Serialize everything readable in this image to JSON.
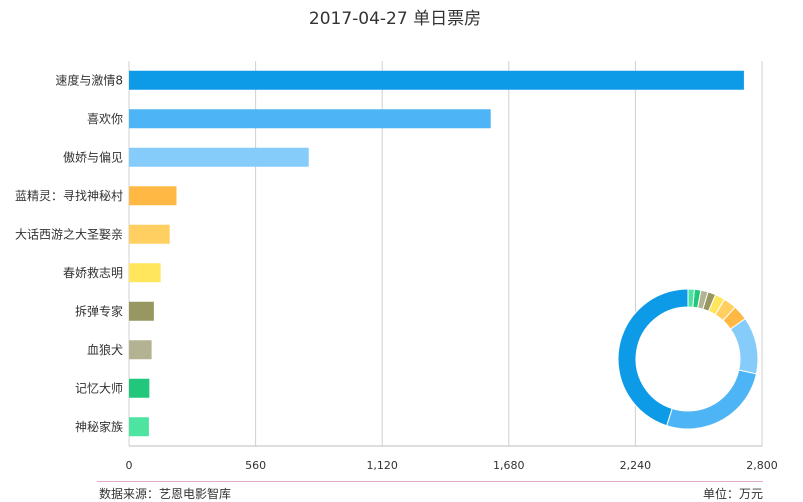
{
  "chart_data": {
    "type": "bar",
    "orientation": "horizontal",
    "title": "2017-04-27 单日票房",
    "categories": [
      "速度与激情8",
      "喜欢你",
      "傲娇与偏见",
      "蓝精灵：寻找神秘村",
      "大话西游之大圣娶亲",
      "春娇救志明",
      "拆弹专家",
      "血狼犬",
      "记忆大师",
      "神秘家族"
    ],
    "values": [
      2720,
      1600,
      795,
      210,
      180,
      140,
      110,
      100,
      90,
      88
    ],
    "colors": [
      "#0d9be8",
      "#4db5f5",
      "#86ccfb",
      "#ffb844",
      "#ffd061",
      "#ffe65c",
      "#979762",
      "#b3b393",
      "#21c77a",
      "#4de3a0"
    ],
    "xlim": [
      0,
      2800
    ],
    "xticks": [
      "0",
      "560",
      "1,120",
      "1,680",
      "2,240",
      "2,800"
    ],
    "grid": true,
    "donut": {
      "type": "pie",
      "style": "ring",
      "values": [
        2720,
        1600,
        795,
        210,
        180,
        140,
        110,
        100,
        90,
        88
      ],
      "colors": [
        "#0d9be8",
        "#4db5f5",
        "#86ccfb",
        "#ffb844",
        "#ffd061",
        "#ffe65c",
        "#979762",
        "#b3b393",
        "#21c77a",
        "#4de3a0"
      ]
    }
  },
  "footer": {
    "source": "数据来源：艺恩电影智库",
    "unit": "单位：万元"
  }
}
